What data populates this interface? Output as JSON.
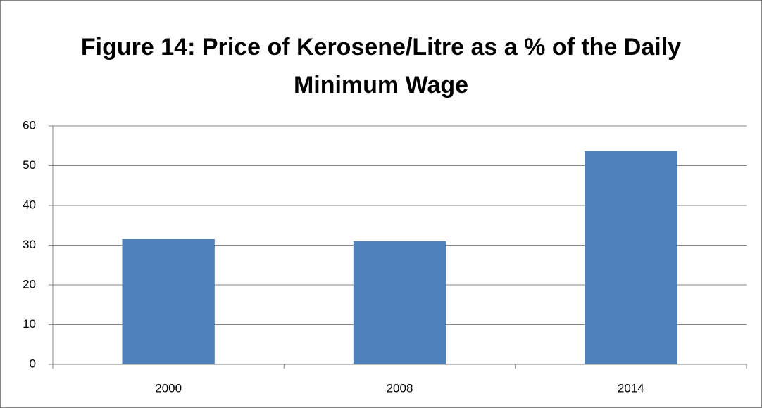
{
  "chart_data": {
    "type": "bar",
    "title": "Figure 14: Price of Kerosene/Litre as a % of the Daily Minimum Wage",
    "categories": [
      "2000",
      "2008",
      "2014"
    ],
    "values": [
      31.5,
      31.0,
      53.7
    ],
    "color": "#4f81bd",
    "ylim": [
      0,
      60
    ],
    "yticks": [
      0,
      10,
      20,
      30,
      40,
      50,
      60
    ],
    "grid": true
  }
}
